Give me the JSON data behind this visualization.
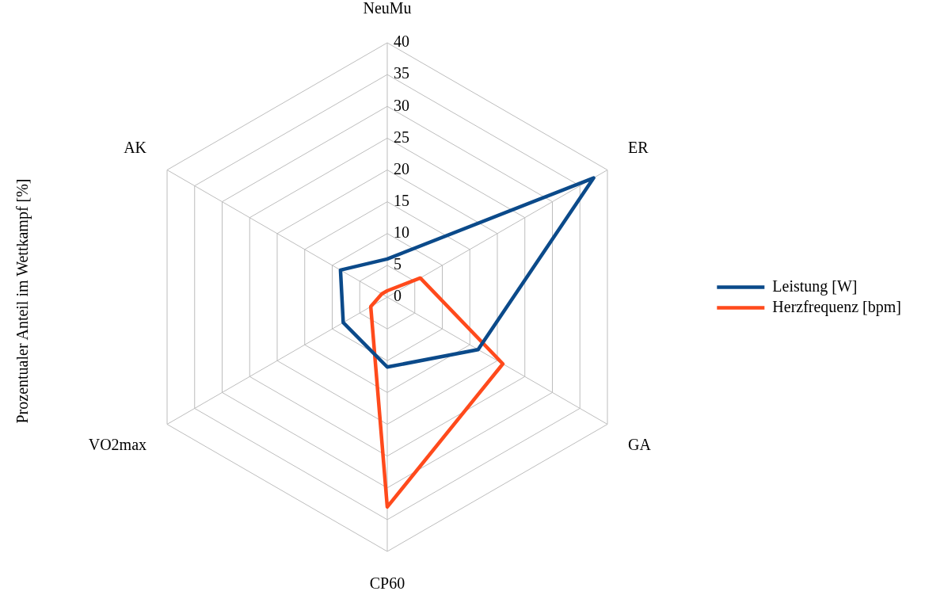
{
  "chart_data": {
    "type": "radar",
    "ylabel": "Prozentualer Anteil im Wettkampf [%]",
    "categories": [
      "NeuMu",
      "ER",
      "GA",
      "CP60",
      "VO2max",
      "AK"
    ],
    "series": [
      {
        "name": "Leistung [W]",
        "color": "#0b4a8a",
        "values": [
          6,
          37.5,
          16.5,
          11,
          8,
          8.5
        ]
      },
      {
        "name": "Herzfrequenz [bpm]",
        "color": "#ff4a1c",
        "values": [
          1,
          6,
          21,
          33,
          3,
          1
        ]
      }
    ],
    "ylim": [
      0,
      40
    ],
    "yticks": [
      0,
      5,
      10,
      15,
      20,
      25,
      30,
      35,
      40
    ],
    "grid": true,
    "legend": "right",
    "marker": "none",
    "line_style": "solid"
  }
}
